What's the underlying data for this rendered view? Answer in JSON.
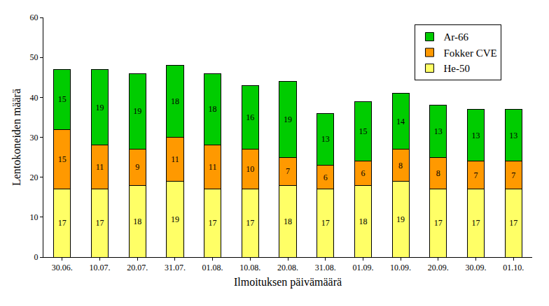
{
  "chart_data": {
    "type": "bar",
    "stacked": true,
    "data_labels": true,
    "grid": false,
    "legend": "top-right",
    "x_label": "Ilmoituksen päivämäärä",
    "y_label": "Lentokoneiden määrä",
    "categories": [
      "30.06.",
      "10.07.",
      "20.07.",
      "31.07.",
      "01.08.",
      "10.08.",
      "20.08.",
      "31.08.",
      "01.09.",
      "10.09.",
      "20.09.",
      "30.09.",
      "01.10."
    ],
    "series": [
      {
        "name": "He-50",
        "color": "#ffff66",
        "values": [
          17,
          17,
          18,
          19,
          17,
          17,
          18,
          17,
          18,
          19,
          17,
          17,
          17
        ]
      },
      {
        "name": "Fokker CVE",
        "color": "#ff9900",
        "values": [
          15,
          11,
          9,
          11,
          11,
          10,
          7,
          6,
          6,
          8,
          8,
          7,
          7
        ]
      },
      {
        "name": "Ar-66",
        "color": "#00cc00",
        "values": [
          15,
          19,
          19,
          18,
          18,
          16,
          19,
          13,
          15,
          14,
          13,
          13,
          13
        ]
      }
    ],
    "ylim": [
      0,
      60
    ],
    "yticks": [
      0,
      10,
      20,
      30,
      40,
      50,
      60
    ]
  }
}
